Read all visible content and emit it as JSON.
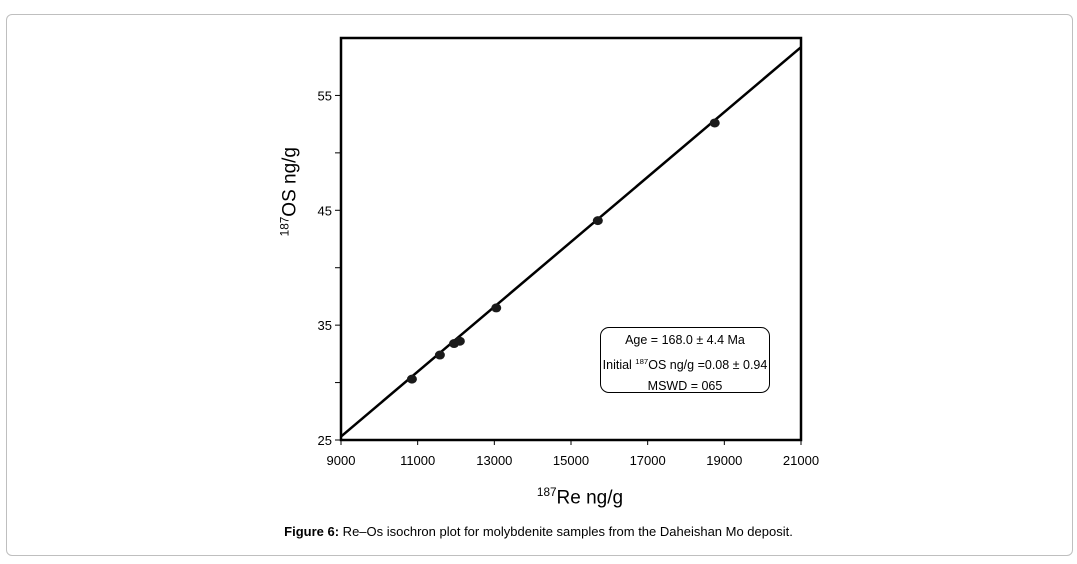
{
  "figure": {
    "caption_label": "Figure 6:",
    "caption_text": " Re–Os isochron plot for molybdenite samples from the Daheishan Mo deposit."
  },
  "chart_data": {
    "type": "scatter",
    "title": "",
    "xlabel_sup": "187",
    "xlabel_main": "Re ng/g",
    "ylabel_sup": "187",
    "ylabel_main": "OS ng/g",
    "xlim": [
      9000,
      21000
    ],
    "ylim": [
      25,
      60
    ],
    "x_ticks": [
      9000,
      11000,
      13000,
      15000,
      17000,
      19000,
      21000
    ],
    "x_tick_labels": [
      "9000",
      "11000",
      "13000",
      "15000",
      "17000",
      "19000",
      "21000"
    ],
    "y_ticks_labeled": [
      25,
      35,
      45,
      55
    ],
    "y_tick_labels": [
      "25",
      "35",
      "45",
      "55"
    ],
    "y_ticks_minor": [
      30,
      40,
      50
    ],
    "grid": false,
    "points": [
      {
        "x": 10850,
        "y": 30.3
      },
      {
        "x": 11580,
        "y": 32.4
      },
      {
        "x": 11950,
        "y": 33.4
      },
      {
        "x": 12100,
        "y": 33.6
      },
      {
        "x": 13050,
        "y": 36.5
      },
      {
        "x": 15700,
        "y": 44.1
      },
      {
        "x": 18750,
        "y": 52.6
      }
    ],
    "fit_line": {
      "x": [
        9000,
        21000
      ],
      "y": [
        25.3,
        59.2
      ]
    },
    "annotation": {
      "line1": "Age = 168.0 ± 4.4 Ma",
      "line2_prefix": "Initial ",
      "line2_sup": "187",
      "line2_rest": "OS ng/g =0.08 ± 0.94",
      "line3": "MSWD = 065"
    }
  }
}
